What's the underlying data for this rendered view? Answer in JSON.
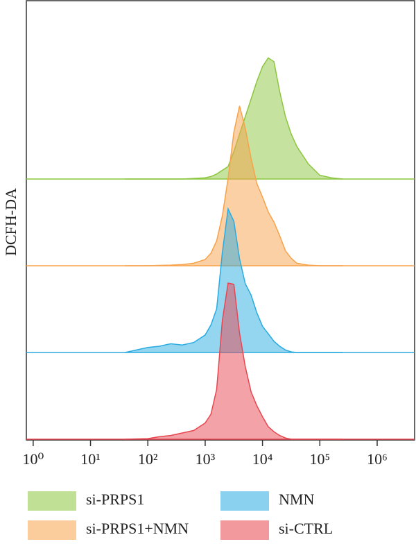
{
  "chart_data": {
    "type": "ridgeline",
    "ylabel": "DCFH-DA",
    "xscale": "log",
    "xlim": [
      0.76,
      4500000
    ],
    "xticks": [
      {
        "value": 1,
        "label": "10⁰"
      },
      {
        "value": 10,
        "label": "10¹"
      },
      {
        "value": 100,
        "label": "10²"
      },
      {
        "value": 1000,
        "label": "10³"
      },
      {
        "value": 10000,
        "label": "10⁴"
      },
      {
        "value": 100000,
        "label": "10⁵"
      },
      {
        "value": 1000000,
        "label": "10⁶"
      }
    ],
    "x": [
      40,
      100,
      158,
      251,
      398,
      631,
      1000,
      1259,
      1585,
      1995,
      2512,
      3162,
      3981,
      5012,
      6310,
      7943,
      10000,
      12589,
      15849,
      19953,
      25119,
      31623,
      39811,
      63096,
      100000,
      158489,
      251189
    ],
    "series": [
      {
        "name": "si-PRPS1",
        "color": "#8cc63f",
        "values": [
          0,
          0,
          0,
          0,
          0,
          0.5,
          1,
          2,
          4,
          7,
          10,
          22,
          36,
          50,
          64,
          78,
          90,
          97,
          94,
          70,
          50,
          36,
          26,
          12,
          3,
          1,
          0
        ]
      },
      {
        "name": "si-PRPS1+NMN",
        "color": "#f7a24a",
        "values": [
          0,
          0,
          0.3,
          0.5,
          1,
          2,
          5,
          10,
          20,
          40,
          70,
          107,
          128,
          110,
          86,
          66,
          55,
          43,
          35,
          24,
          12,
          6,
          2,
          0.5,
          0,
          0,
          0
        ]
      },
      {
        "name": "NMN",
        "color": "#29abe2",
        "values": [
          0,
          4,
          5,
          7,
          6,
          8,
          14,
          22,
          35,
          80,
          115,
          105,
          75,
          55,
          46,
          32,
          21,
          15,
          9,
          5,
          2,
          0.5,
          0,
          0,
          0,
          0,
          0
        ]
      },
      {
        "name": "si-CTRL",
        "color": "#e8464f",
        "values": [
          0,
          0.5,
          2,
          3,
          5,
          7,
          13,
          20,
          40,
          95,
          125,
          124,
          85,
          58,
          38,
          27,
          18,
          10,
          6,
          3,
          1,
          0,
          0,
          0,
          0,
          0,
          0
        ]
      }
    ]
  }
}
